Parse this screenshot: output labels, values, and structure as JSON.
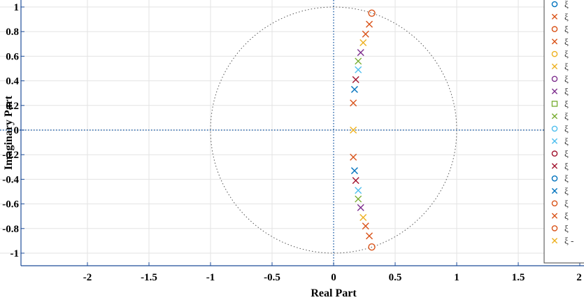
{
  "chart_data": {
    "type": "scatter",
    "xlabel": "Real Part",
    "ylabel": "Imaginary Part",
    "xlim": [
      -2.5,
      2.1
    ],
    "ylim": [
      -1.1,
      1.05
    ],
    "xticks": [
      -2,
      -1.5,
      -1,
      -0.5,
      0,
      0.5,
      1,
      1.5,
      2
    ],
    "yticks": [
      1,
      0.8,
      0.6,
      0.4,
      0.2,
      0,
      -0.2,
      -0.4,
      -0.6,
      -0.8,
      -1
    ],
    "grid": true,
    "unit_circle": true,
    "legend_placement": "top-right",
    "series": [
      {
        "marker": "o",
        "color": "#0072BD",
        "points": []
      },
      {
        "marker": "x",
        "color": "#D95319",
        "points": [
          [
            0.29,
            0.86
          ],
          [
            0.29,
            -0.86
          ]
        ]
      },
      {
        "marker": "o",
        "color": "#D95319",
        "points": []
      },
      {
        "marker": "x",
        "color": "#D95319",
        "points": [
          [
            0.26,
            0.78
          ],
          [
            0.26,
            -0.78
          ]
        ]
      },
      {
        "marker": "o",
        "color": "#EDB120",
        "points": []
      },
      {
        "marker": "x",
        "color": "#EDB120",
        "points": [
          [
            0.24,
            0.71
          ],
          [
            0.24,
            -0.71
          ]
        ]
      },
      {
        "marker": "o",
        "color": "#7E2F8E",
        "points": []
      },
      {
        "marker": "x",
        "color": "#7E2F8E",
        "points": [
          [
            0.22,
            0.63
          ],
          [
            0.22,
            -0.63
          ]
        ]
      },
      {
        "marker": "s",
        "color": "#77AC30",
        "points": []
      },
      {
        "marker": "x",
        "color": "#77AC30",
        "points": [
          [
            0.2,
            0.56
          ],
          [
            0.2,
            -0.56
          ]
        ]
      },
      {
        "marker": "o",
        "color": "#4DBEEE",
        "points": []
      },
      {
        "marker": "x",
        "color": "#4DBEEE",
        "points": [
          [
            0.2,
            0.49
          ],
          [
            0.2,
            -0.49
          ]
        ]
      },
      {
        "marker": "o",
        "color": "#A2142F",
        "points": []
      },
      {
        "marker": "x",
        "color": "#A2142F",
        "points": [
          [
            0.18,
            0.41
          ],
          [
            0.18,
            -0.41
          ]
        ]
      },
      {
        "marker": "o",
        "color": "#0072BD",
        "points": []
      },
      {
        "marker": "x",
        "color": "#0072BD",
        "points": [
          [
            0.17,
            0.33
          ],
          [
            0.17,
            -0.33
          ]
        ]
      },
      {
        "marker": "o",
        "color": "#D95319",
        "points": []
      },
      {
        "marker": "x",
        "color": "#D95319",
        "points": [
          [
            0.16,
            0.22
          ],
          [
            0.16,
            -0.22
          ]
        ]
      },
      {
        "marker": "o",
        "color": "#D95319",
        "points": [
          [
            0.31,
            0.95
          ],
          [
            0.31,
            -0.95
          ]
        ]
      },
      {
        "marker": "x",
        "color": "#EDB120",
        "points": [
          [
            0.16,
            0.0
          ]
        ]
      }
    ],
    "legend_entries": [
      "ξ",
      "ξ",
      "ξ",
      "ξ",
      "ξ",
      "ξ",
      "ξ",
      "ξ",
      "ξ",
      "ξ",
      "ξ",
      "ξ",
      "ξ",
      "ξ",
      "ξ",
      "ξ",
      "ξ",
      "ξ",
      "ξ",
      "ξ -"
    ],
    "colors": {
      "grid": "#e3e3e3",
      "axis": "#1f4e99",
      "zero_line": "#1f5fa8",
      "unit_circle": "#555555"
    }
  }
}
